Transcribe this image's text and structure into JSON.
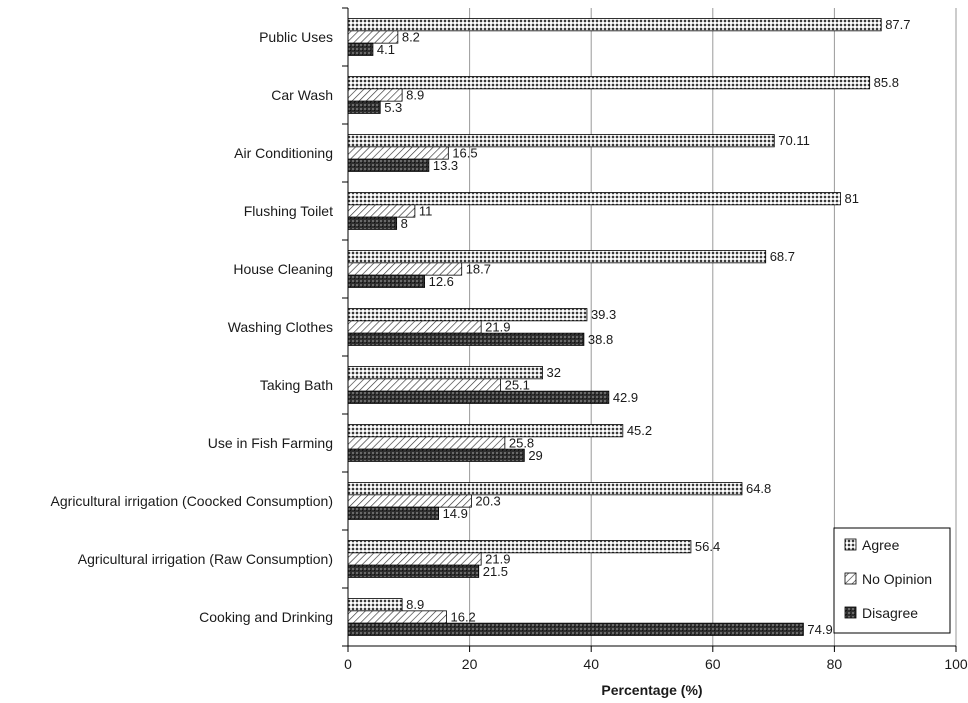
{
  "chart_data": {
    "type": "bar",
    "orientation": "horizontal",
    "categories": [
      "Public Uses",
      "Car Wash",
      "Air Conditioning",
      "Flushing Toilet",
      "House Cleaning",
      "Washing Clothes",
      "Taking Bath",
      "Use in Fish Farming",
      "Agricultural irrigation (Coocked Consumption)",
      "Agricultural irrigation (Raw Consumption)",
      "Cooking and Drinking"
    ],
    "series": [
      {
        "name": "Agree",
        "pattern": "dots",
        "values": [
          87.7,
          85.8,
          70.11,
          81,
          68.7,
          39.3,
          32,
          45.2,
          64.8,
          56.4,
          8.9
        ],
        "labels": [
          "87.7",
          "85.8",
          "70.11",
          "81",
          "68.7",
          "39.3",
          "32",
          "45.2",
          "64.8",
          "56.4",
          "8.9"
        ]
      },
      {
        "name": "No Opinion",
        "pattern": "hatch",
        "values": [
          8.2,
          8.9,
          16.5,
          11,
          18.7,
          21.9,
          25.1,
          25.8,
          20.3,
          21.9,
          16.2
        ],
        "labels": [
          "8.2",
          "8.9",
          "16.5",
          "11",
          "18.7",
          "21.9",
          "25.1",
          "25.8",
          "20.3",
          "21.9",
          "16.2"
        ]
      },
      {
        "name": "Disagree",
        "pattern": "dark",
        "values": [
          4.1,
          5.3,
          13.3,
          8,
          12.6,
          38.8,
          42.9,
          29,
          14.9,
          21.5,
          74.9
        ],
        "labels": [
          "4.1",
          "5.3",
          "13.3",
          "8",
          "12.6",
          "38.8",
          "42.9",
          "29",
          "14.9",
          "21.5",
          "74.9"
        ]
      }
    ],
    "xlabel": "Percentage (%)",
    "xlim": [
      0,
      100
    ],
    "xticks": [
      "0",
      "20",
      "40",
      "60",
      "80",
      "100"
    ],
    "grid": "vertical",
    "legend_position": "bottom-right",
    "colors": {
      "bar_border": "#000000",
      "grid": "#9a9a9a",
      "text": "#1a1a1a"
    }
  }
}
